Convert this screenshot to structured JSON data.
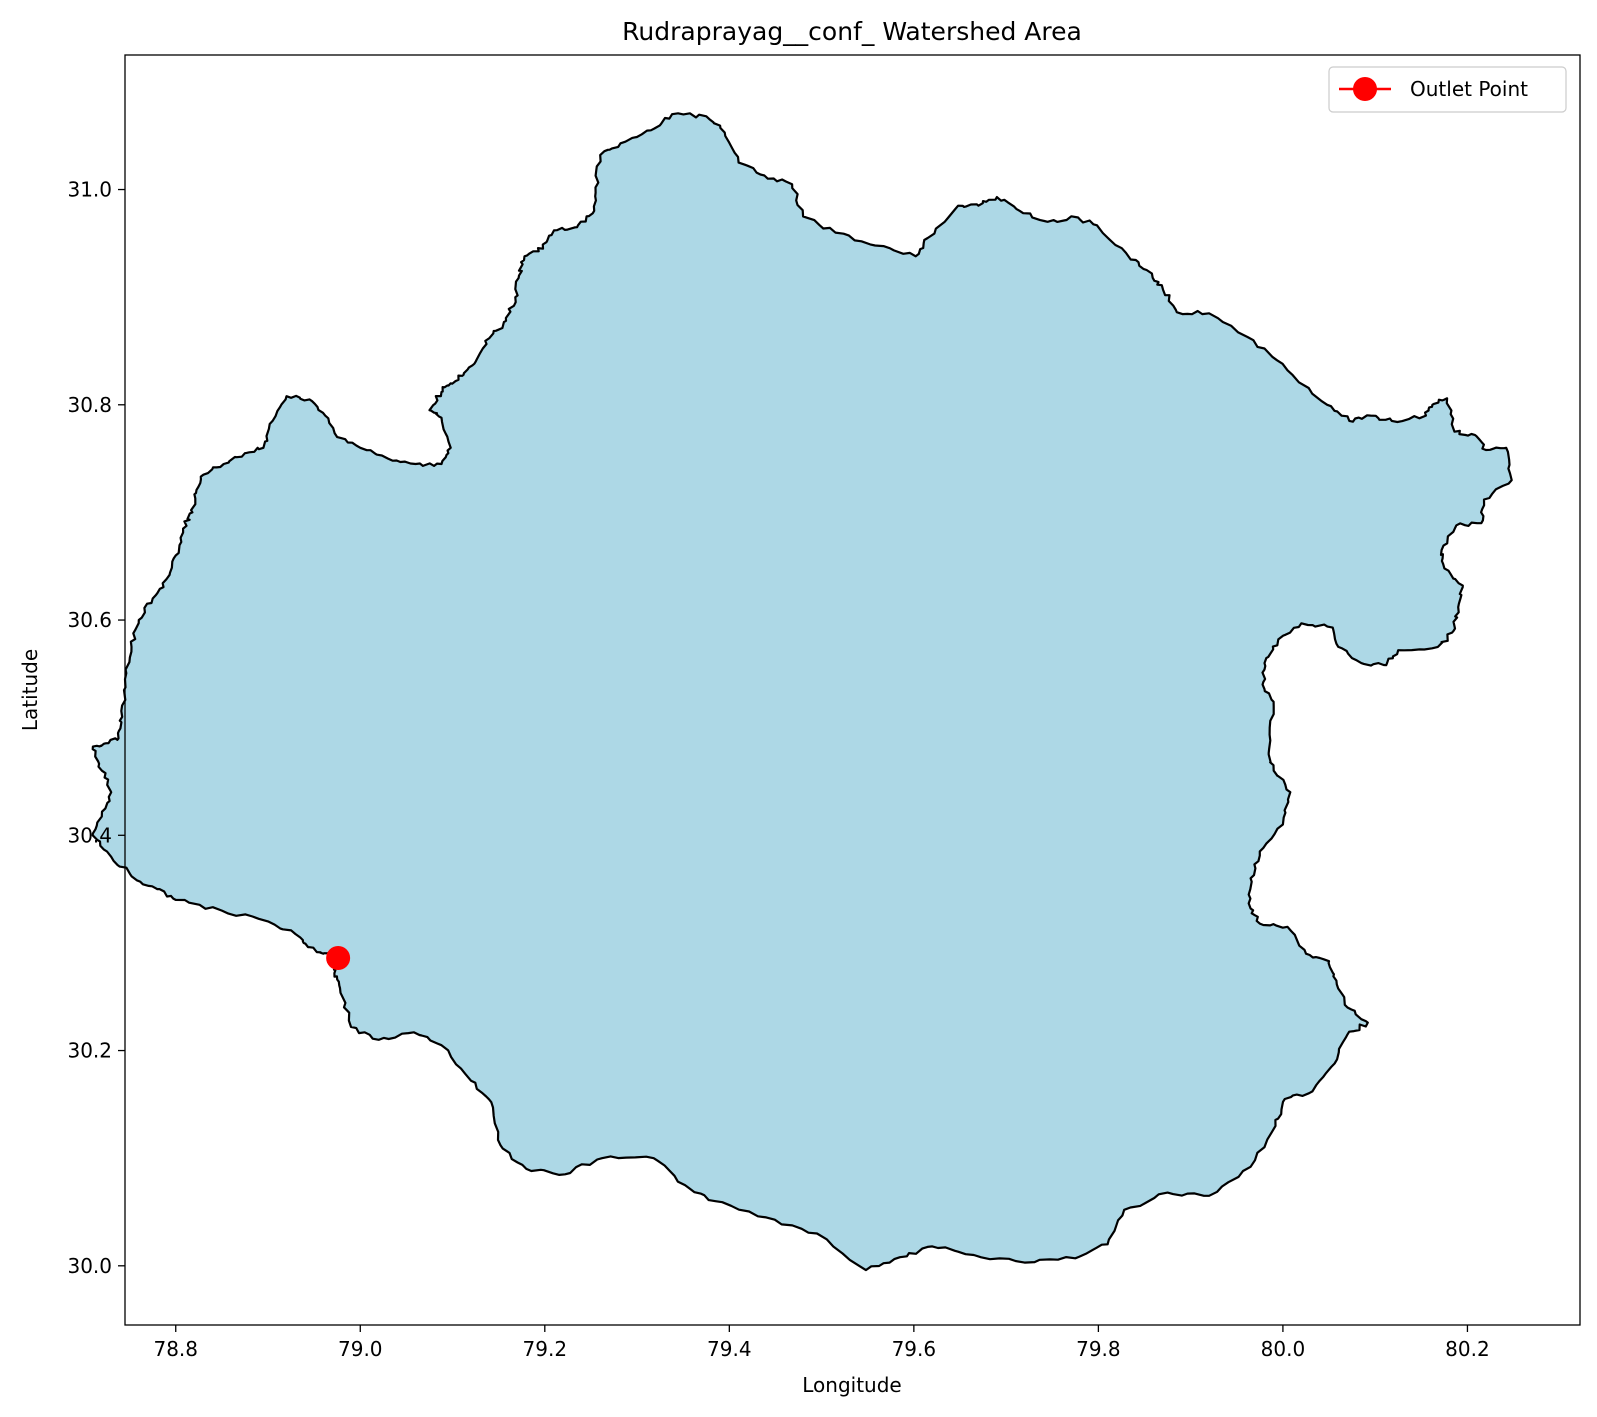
{
  "chart_data": {
    "type": "map",
    "title": "Rudraprayag__conf_ Watershed Area",
    "xlabel": "Longitude",
    "ylabel": "Latitude",
    "xlim": [
      78.745,
      80.322
    ],
    "ylim": [
      29.945,
      31.125
    ],
    "xticks": [
      78.8,
      79.0,
      79.2,
      79.4,
      79.6,
      79.8,
      80.0,
      80.2
    ],
    "xtick_labels": [
      "78.8",
      "79.0",
      "79.2",
      "79.4",
      "79.6",
      "79.8",
      "80.0",
      "80.2"
    ],
    "yticks": [
      30.0,
      30.2,
      30.4,
      30.6,
      30.8,
      31.0
    ],
    "ytick_labels": [
      "30.0",
      "30.2",
      "30.4",
      "30.6",
      "30.8",
      "31.0"
    ],
    "grid": false,
    "legend_position": "top-right",
    "legend": [
      {
        "label": "Outlet Point",
        "marker": "circle",
        "color": "#ff0000"
      }
    ],
    "fill_color": "#add8e6",
    "edge_color": "#000000",
    "outlet_point": {
      "lon": 78.976,
      "lat": 30.286
    },
    "watershed_boundary": [
      [
        78.976,
        30.286
      ],
      [
        78.972,
        30.272
      ],
      [
        78.978,
        30.258
      ],
      [
        78.99,
        30.222
      ],
      [
        79.02,
        30.21
      ],
      [
        79.058,
        30.217
      ],
      [
        79.088,
        30.205
      ],
      [
        79.12,
        30.172
      ],
      [
        79.142,
        30.152
      ],
      [
        79.152,
        30.112
      ],
      [
        79.18,
        30.09
      ],
      [
        79.222,
        30.085
      ],
      [
        79.262,
        30.1
      ],
      [
        79.318,
        30.1
      ],
      [
        79.352,
        30.075
      ],
      [
        79.385,
        30.06
      ],
      [
        79.44,
        30.045
      ],
      [
        79.495,
        30.03
      ],
      [
        79.548,
        29.996
      ],
      [
        79.585,
        30.008
      ],
      [
        79.62,
        30.018
      ],
      [
        79.665,
        30.01
      ],
      [
        79.72,
        30.003
      ],
      [
        79.775,
        30.007
      ],
      [
        79.81,
        30.02
      ],
      [
        79.828,
        30.052
      ],
      [
        79.875,
        30.068
      ],
      [
        79.92,
        30.065
      ],
      [
        79.965,
        30.092
      ],
      [
        79.992,
        30.13
      ],
      [
        80.002,
        30.155
      ],
      [
        80.032,
        30.162
      ],
      [
        80.056,
        30.188
      ],
      [
        80.07,
        30.215
      ],
      [
        80.092,
        30.226
      ],
      [
        80.07,
        30.24
      ],
      [
        80.058,
        30.265
      ],
      [
        80.05,
        30.283
      ],
      [
        80.025,
        30.29
      ],
      [
        80.005,
        30.315
      ],
      [
        79.975,
        30.318
      ],
      [
        79.965,
        30.332
      ],
      [
        79.965,
        30.36
      ],
      [
        79.975,
        30.385
      ],
      [
        80.0,
        30.41
      ],
      [
        80.008,
        30.44
      ],
      [
        79.99,
        30.46
      ],
      [
        79.985,
        30.48
      ],
      [
        79.99,
        30.52
      ],
      [
        79.978,
        30.54
      ],
      [
        79.98,
        30.56
      ],
      [
        79.995,
        30.582
      ],
      [
        80.02,
        30.597
      ],
      [
        80.054,
        30.593
      ],
      [
        80.06,
        30.575
      ],
      [
        80.085,
        30.56
      ],
      [
        80.112,
        30.558
      ],
      [
        80.125,
        30.572
      ],
      [
        80.168,
        30.575
      ],
      [
        80.185,
        30.59
      ],
      [
        80.19,
        30.612
      ],
      [
        80.195,
        30.632
      ],
      [
        80.175,
        30.648
      ],
      [
        80.172,
        30.665
      ],
      [
        80.188,
        30.688
      ],
      [
        80.215,
        30.69
      ],
      [
        80.218,
        30.712
      ],
      [
        80.248,
        30.73
      ],
      [
        80.242,
        30.76
      ],
      [
        80.22,
        30.758
      ],
      [
        80.208,
        30.772
      ],
      [
        80.186,
        30.775
      ],
      [
        80.178,
        30.806
      ],
      [
        80.162,
        30.8
      ],
      [
        80.155,
        30.79
      ],
      [
        80.118,
        30.785
      ],
      [
        80.095,
        30.79
      ],
      [
        80.072,
        30.785
      ],
      [
        80.048,
        30.8
      ],
      [
        80.005,
        30.832
      ],
      [
        79.968,
        30.86
      ],
      [
        79.92,
        30.885
      ],
      [
        79.885,
        30.886
      ],
      [
        79.87,
        30.907
      ],
      [
        79.858,
        30.922
      ],
      [
        79.835,
        30.935
      ],
      [
        79.8,
        30.965
      ],
      [
        79.778,
        30.974
      ],
      [
        79.745,
        30.97
      ],
      [
        79.715,
        30.98
      ],
      [
        79.69,
        30.993
      ],
      [
        79.67,
        30.985
      ],
      [
        79.648,
        30.985
      ],
      [
        79.615,
        30.955
      ],
      [
        79.602,
        30.938
      ],
      [
        79.558,
        30.948
      ],
      [
        79.515,
        30.96
      ],
      [
        79.48,
        30.975
      ],
      [
        79.468,
        31.005
      ],
      [
        79.438,
        31.013
      ],
      [
        79.41,
        31.025
      ],
      [
        79.395,
        31.053
      ],
      [
        79.375,
        31.068
      ],
      [
        79.338,
        31.07
      ],
      [
        79.315,
        31.055
      ],
      [
        79.282,
        31.043
      ],
      [
        79.26,
        31.032
      ],
      [
        79.255,
        31.002
      ],
      [
        79.252,
        30.978
      ],
      [
        79.235,
        30.965
      ],
      [
        79.21,
        30.962
      ],
      [
        79.198,
        30.945
      ],
      [
        79.178,
        30.938
      ],
      [
        79.172,
        30.92
      ],
      [
        79.168,
        30.9
      ],
      [
        79.158,
        30.878
      ],
      [
        79.14,
        30.862
      ],
      [
        79.125,
        30.84
      ],
      [
        79.112,
        30.828
      ],
      [
        79.098,
        30.82
      ],
      [
        79.088,
        30.812
      ],
      [
        79.075,
        30.795
      ],
      [
        79.088,
        30.788
      ],
      [
        79.098,
        30.76
      ],
      [
        79.088,
        30.745
      ],
      [
        79.06,
        30.745
      ],
      [
        79.03,
        30.75
      ],
      [
        79.0,
        30.76
      ],
      [
        78.975,
        30.77
      ],
      [
        78.962,
        30.79
      ],
      [
        78.945,
        30.805
      ],
      [
        78.92,
        30.808
      ],
      [
        78.905,
        30.785
      ],
      [
        78.895,
        30.76
      ],
      [
        78.875,
        30.755
      ],
      [
        78.852,
        30.745
      ],
      [
        78.83,
        30.735
      ],
      [
        78.822,
        30.718
      ],
      [
        78.818,
        30.7
      ],
      [
        78.808,
        30.685
      ],
      [
        78.8,
        30.66
      ],
      [
        78.79,
        30.638
      ],
      [
        78.775,
        30.62
      ],
      [
        78.76,
        30.6
      ],
      [
        78.752,
        30.575
      ],
      [
        78.745,
        30.545
      ],
      [
        78.742,
        30.51
      ],
      [
        78.738,
        30.49
      ],
      [
        78.722,
        30.485
      ],
      [
        78.71,
        30.48
      ],
      [
        78.72,
        30.46
      ],
      [
        78.73,
        30.44
      ],
      [
        78.72,
        30.42
      ],
      [
        78.71,
        30.4
      ],
      [
        78.73,
        30.38
      ],
      [
        78.752,
        30.362
      ],
      [
        78.78,
        30.35
      ],
      [
        78.8,
        30.34
      ],
      [
        78.85,
        30.33
      ],
      [
        78.9,
        30.32
      ],
      [
        78.935,
        30.305
      ],
      [
        78.945,
        30.296
      ],
      [
        78.96,
        30.29
      ]
    ]
  }
}
